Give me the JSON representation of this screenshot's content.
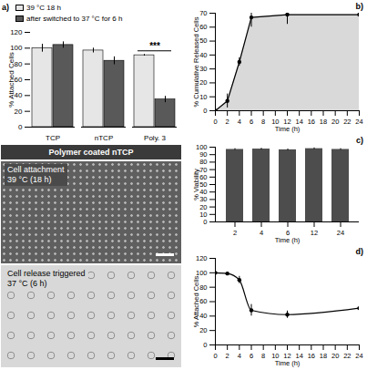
{
  "chart_data": [
    {
      "type": "bar",
      "title": "a)",
      "categories": [
        "TCP",
        "nTCP",
        "Poly. 3"
      ],
      "series": [
        {
          "name": "39 °C 18 h",
          "color": "#e6e6e6",
          "values": [
            100,
            97,
            91
          ],
          "errors": [
            5,
            3,
            1
          ]
        },
        {
          "name": "after switched to 37 °C for 6 h",
          "color": "#595959",
          "values": [
            104,
            84,
            35
          ],
          "errors": [
            4,
            5,
            4
          ]
        }
      ],
      "y_label": "% Attached Cells",
      "ylim": [
        0,
        120
      ],
      "yticks": [
        0,
        20,
        40,
        60,
        80,
        100,
        120
      ],
      "legend": "top",
      "annotations": [
        {
          "text": "***",
          "category": "Poly. 3"
        }
      ]
    },
    {
      "type": "area",
      "title": "b)",
      "x": [
        0,
        2,
        4,
        6,
        12,
        24
      ],
      "values": [
        0,
        7,
        35,
        67,
        69,
        69
      ],
      "errors": [
        1,
        5,
        3,
        7,
        7,
        6
      ],
      "color": "#000000",
      "marker": "circle",
      "x_label": "Time (h)",
      "y_label": "% Cumulative Released Cells",
      "xlim": [
        0,
        24
      ],
      "xticks": [
        0,
        2,
        4,
        6,
        8,
        10,
        12,
        14,
        16,
        18,
        20,
        22,
        24
      ],
      "ylim": [
        0,
        70
      ],
      "yticks": [
        0,
        10,
        20,
        30,
        40,
        50,
        60,
        70
      ]
    },
    {
      "type": "bar",
      "title": "c)",
      "categories": [
        "2",
        "4",
        "6",
        "12",
        "24"
      ],
      "values": [
        97,
        97.5,
        96.5,
        98,
        97
      ],
      "errors": [
        1,
        1,
        1,
        1,
        1
      ],
      "color": "#4d4d4d",
      "x_label": "Time (h)",
      "y_label": "% Viability",
      "ylim": [
        0,
        100
      ],
      "yticks": [
        0,
        10,
        20,
        30,
        40,
        50,
        60,
        70,
        80,
        90,
        100
      ]
    },
    {
      "type": "line",
      "title": "d)",
      "x": [
        0,
        2,
        4,
        6,
        12,
        24
      ],
      "values": [
        100,
        99,
        90,
        48,
        42,
        51
      ],
      "errors": [
        0,
        1,
        5,
        8,
        5,
        7
      ],
      "color": "#000000",
      "marker": "circle",
      "x_label": "Time (h)",
      "y_label": "% Attached Cells",
      "xlim": [
        0,
        24
      ],
      "xticks": [
        0,
        2,
        4,
        6,
        8,
        10,
        12,
        14,
        16,
        18,
        20,
        22,
        24
      ],
      "ylim": [
        0,
        120
      ],
      "yticks": [
        0,
        20,
        40,
        60,
        80,
        100,
        120
      ]
    }
  ],
  "figure": {
    "title": "Polymer coated nTCP",
    "images": [
      {
        "lines": [
          "Cell attachment",
          "39 °C (18 h)"
        ]
      },
      {
        "lines": [
          "Cell release triggered",
          "37 °C (6 h)"
        ]
      }
    ]
  }
}
